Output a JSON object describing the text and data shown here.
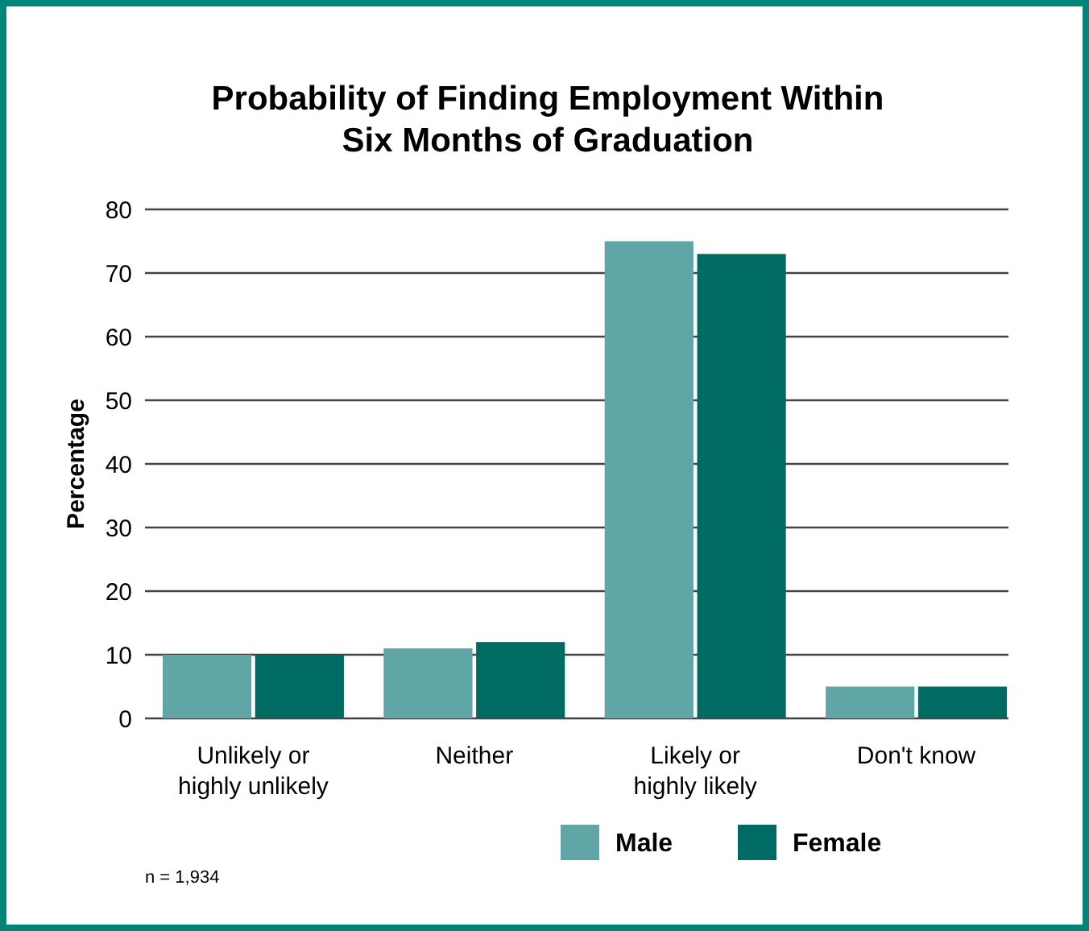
{
  "chart_data": {
    "type": "bar",
    "title": "Probability of Finding Employment Within\nSix Months of Graduation",
    "ylabel": "Percentage",
    "categories": [
      "Unlikely or\nhighly unlikely",
      "Neither",
      "Likely or\nhighly likely",
      "Don't know"
    ],
    "series": [
      {
        "name": "Male",
        "color": "#60a6a6",
        "values": [
          10,
          11,
          75,
          5
        ]
      },
      {
        "name": "Female",
        "color": "#006b63",
        "values": [
          10,
          12,
          73,
          5
        ]
      }
    ],
    "ylim": [
      0,
      80
    ],
    "yticks": [
      0,
      10,
      20,
      30,
      40,
      50,
      60,
      70,
      80
    ],
    "grid": "y",
    "legend": "bottom",
    "annotations": [
      "n = 1,934"
    ]
  }
}
